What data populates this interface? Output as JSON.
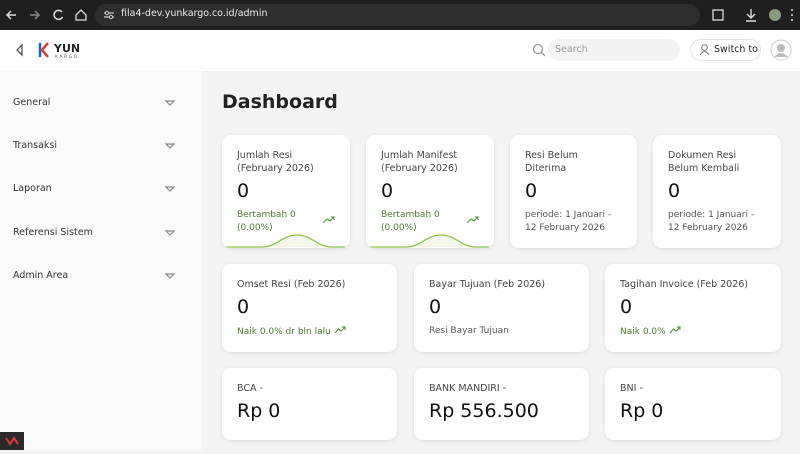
{
  "browser": {
    "url": "fila4-dev.yunkargo.co.id/admin"
  },
  "header": {
    "logo": "YUN",
    "logo_sub": "KARGO",
    "search_placeholder": "Search",
    "switch_button": "Switch to"
  },
  "sidebar": {
    "items": [
      "General",
      "Transaksi",
      "Laporan",
      "Referensi Sistem",
      "Admin Area"
    ]
  },
  "main": {
    "title": "Dashboard",
    "rows": [
      [
        {
          "label": "Jumlah Resi (February 2026)",
          "value": "0",
          "note": "Bertambah 0 (0.00%)"
        },
        {
          "label": "Jumlah Manifest (February 2026)",
          "value": "0",
          "note": "Bertambah 0 (0.00%)"
        },
        {
          "label": "Resi Belum Diterima",
          "value": "0",
          "note": "periode: 1 Januari - 12 February 2026"
        },
        {
          "label": "Dokumen Resi Belum Kembali",
          "value": "0",
          "note": "periode: 1 Januari - 12 February 2026"
        }
      ],
      [
        {
          "label": "Omset Resi (Feb 2026)",
          "value": "0",
          "note": "Naik 0.0% dr bln lalu"
        },
        {
          "label": "Bayar Tujuan (Feb 2026)",
          "value": "0",
          "note": "Resi Bayar Tujuan"
        },
        {
          "label": "Tagihan Invoice (Feb 2026)",
          "value": "0",
          "note": "Naik 0.0%"
        }
      ],
      [
        {
          "label": "BCA -",
          "value": "Rp 0"
        },
        {
          "label": "BANK MANDIRI -",
          "value": "Rp 556.500"
        },
        {
          "label": "BNI -",
          "value": "Rp 0"
        }
      ]
    ]
  }
}
